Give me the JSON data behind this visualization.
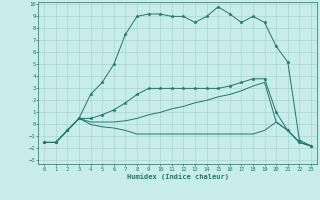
{
  "xlabel": "Humidex (Indice chaleur)",
  "x": [
    0,
    1,
    2,
    3,
    4,
    5,
    6,
    7,
    8,
    9,
    10,
    11,
    12,
    13,
    14,
    15,
    16,
    17,
    18,
    19,
    20,
    21,
    22,
    23
  ],
  "line1": [
    -1.5,
    -1.5,
    -0.5,
    0.5,
    2.5,
    3.5,
    5.0,
    7.5,
    9.0,
    9.2,
    9.2,
    9.0,
    9.0,
    8.5,
    9.0,
    9.8,
    9.2,
    8.5,
    9.0,
    8.5,
    6.5,
    5.2,
    -1.3,
    -1.8
  ],
  "line2": [
    -1.5,
    -1.5,
    -0.5,
    0.5,
    0.5,
    0.8,
    1.2,
    1.8,
    2.5,
    3.0,
    3.0,
    3.0,
    3.0,
    3.0,
    3.0,
    3.0,
    3.2,
    3.5,
    3.8,
    3.8,
    1.0,
    -0.5,
    -1.5,
    -1.8
  ],
  "line3": [
    -1.5,
    -1.5,
    -0.5,
    0.5,
    0.2,
    0.2,
    0.2,
    0.3,
    0.5,
    0.8,
    1.0,
    1.3,
    1.5,
    1.8,
    2.0,
    2.3,
    2.5,
    2.8,
    3.2,
    3.5,
    0.2,
    -0.5,
    -1.5,
    -1.8
  ],
  "line4": [
    -1.5,
    -1.5,
    -0.5,
    0.5,
    0.0,
    -0.2,
    -0.3,
    -0.5,
    -0.8,
    -0.8,
    -0.8,
    -0.8,
    -0.8,
    -0.8,
    -0.8,
    -0.8,
    -0.8,
    -0.8,
    -0.8,
    -0.5,
    0.2,
    -0.5,
    -1.5,
    -1.8
  ],
  "color": "#1a7a6a",
  "bg_color": "#c8ecec",
  "grid_color": "#a0d0d0",
  "ylim": [
    -3,
    10
  ],
  "xlim": [
    -0.5,
    23.5
  ]
}
